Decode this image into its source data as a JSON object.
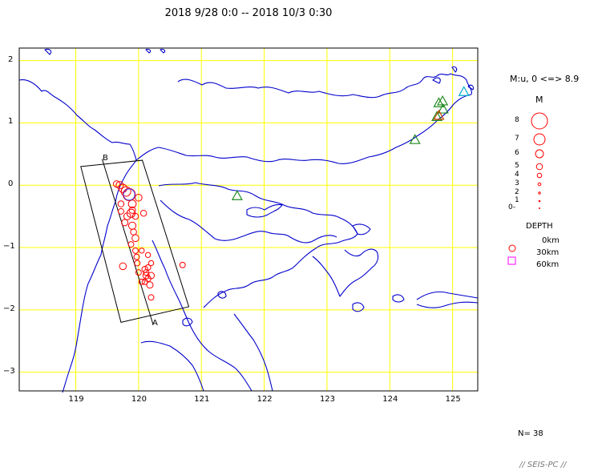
{
  "title": "2018 9/28 0:0 -- 2018 10/3 0:30",
  "colors": {
    "coast": "#0000cc",
    "grid": "#ffff00",
    "event_shallow": "#ff0000",
    "event_deep": "#ff00ff",
    "station": "#228b22",
    "frame": "#000000"
  },
  "axes": {
    "x_ticks": [
      "119",
      "120",
      "121",
      "122",
      "123",
      "124",
      "125"
    ],
    "y_ticks": [
      "2",
      "1",
      "0",
      "−1",
      "−2",
      "−3"
    ],
    "xlim": [
      118.1,
      125.4
    ],
    "ylim": [
      -3.3,
      2.2
    ]
  },
  "section": {
    "label_a": "A",
    "label_b": "B"
  },
  "legend": {
    "title": "M:u, 0 <=> 8.9",
    "m_label": "M",
    "magnitudes": [
      "8",
      "7",
      "6",
      "5",
      "4",
      "3",
      "2",
      "1",
      "0-"
    ],
    "depth_title": "DEPTH",
    "depths": [
      "0km",
      "30km",
      "60km"
    ]
  },
  "count": "N= 38",
  "footer": "// SEIS-PC //",
  "map_data": {
    "events": [
      [
        119.85,
        -0.15,
        2.2
      ],
      [
        119.8,
        -0.1,
        1.6
      ],
      [
        119.75,
        -0.05,
        1.3
      ],
      [
        119.7,
        0.0,
        1.1
      ],
      [
        119.65,
        0.02,
        0.9
      ],
      [
        119.9,
        -0.3,
        1.2
      ],
      [
        119.88,
        -0.45,
        1.3
      ],
      [
        119.82,
        -0.5,
        1.0
      ],
      [
        119.78,
        -0.6,
        0.9
      ],
      [
        119.9,
        -0.65,
        1.1
      ],
      [
        119.92,
        -0.75,
        0.8
      ],
      [
        119.95,
        -0.85,
        1.0
      ],
      [
        120.0,
        -0.2,
        1.0
      ],
      [
        120.08,
        -0.45,
        0.8
      ],
      [
        119.95,
        -0.5,
        0.8
      ],
      [
        119.9,
        -0.4,
        0.9
      ],
      [
        119.72,
        -0.3,
        0.8
      ],
      [
        119.72,
        -0.42,
        0.7
      ],
      [
        119.88,
        -0.95,
        0.7
      ],
      [
        119.95,
        -1.05,
        0.7
      ],
      [
        119.97,
        -1.15,
        0.7
      ],
      [
        120.1,
        -1.35,
        0.8
      ],
      [
        120.12,
        -1.45,
        0.9
      ],
      [
        120.15,
        -1.5,
        0.8
      ],
      [
        120.18,
        -1.6,
        0.9
      ],
      [
        120.1,
        -1.55,
        0.7
      ],
      [
        120.0,
        -1.4,
        0.7
      ],
      [
        120.05,
        -1.55,
        0.7
      ],
      [
        120.2,
        -1.8,
        0.7
      ],
      [
        119.75,
        -1.3,
        1.0
      ],
      [
        120.15,
        -1.12,
        0.6
      ],
      [
        120.2,
        -1.25,
        0.6
      ],
      [
        120.7,
        -1.28,
        0.7
      ],
      [
        120.15,
        -1.32,
        0.7
      ],
      [
        120.2,
        -1.45,
        0.9
      ],
      [
        120.12,
        -1.4,
        0.7
      ],
      [
        119.98,
        -1.25,
        0.7
      ],
      [
        120.05,
        -1.05,
        0.6
      ]
    ],
    "stations": [
      [
        124.84,
        1.35,
        "#228b22"
      ],
      [
        124.78,
        1.32,
        "#228b22"
      ],
      [
        124.85,
        1.22,
        "#228b22"
      ],
      [
        124.75,
        1.1,
        "#228b22"
      ],
      [
        124.78,
        1.12,
        "#cc4400"
      ],
      [
        124.4,
        0.73,
        "#228b22"
      ],
      [
        121.57,
        -0.17,
        "#228b22"
      ],
      [
        125.18,
        1.5,
        "#00aacc"
      ]
    ],
    "section_box": [
      [
        119.08,
        0.3
      ],
      [
        120.06,
        0.4
      ],
      [
        120.8,
        -1.95
      ],
      [
        119.72,
        -2.2
      ]
    ],
    "a_end": [
      120.23,
      -2.23
    ],
    "b_end": [
      119.42,
      0.42
    ]
  }
}
